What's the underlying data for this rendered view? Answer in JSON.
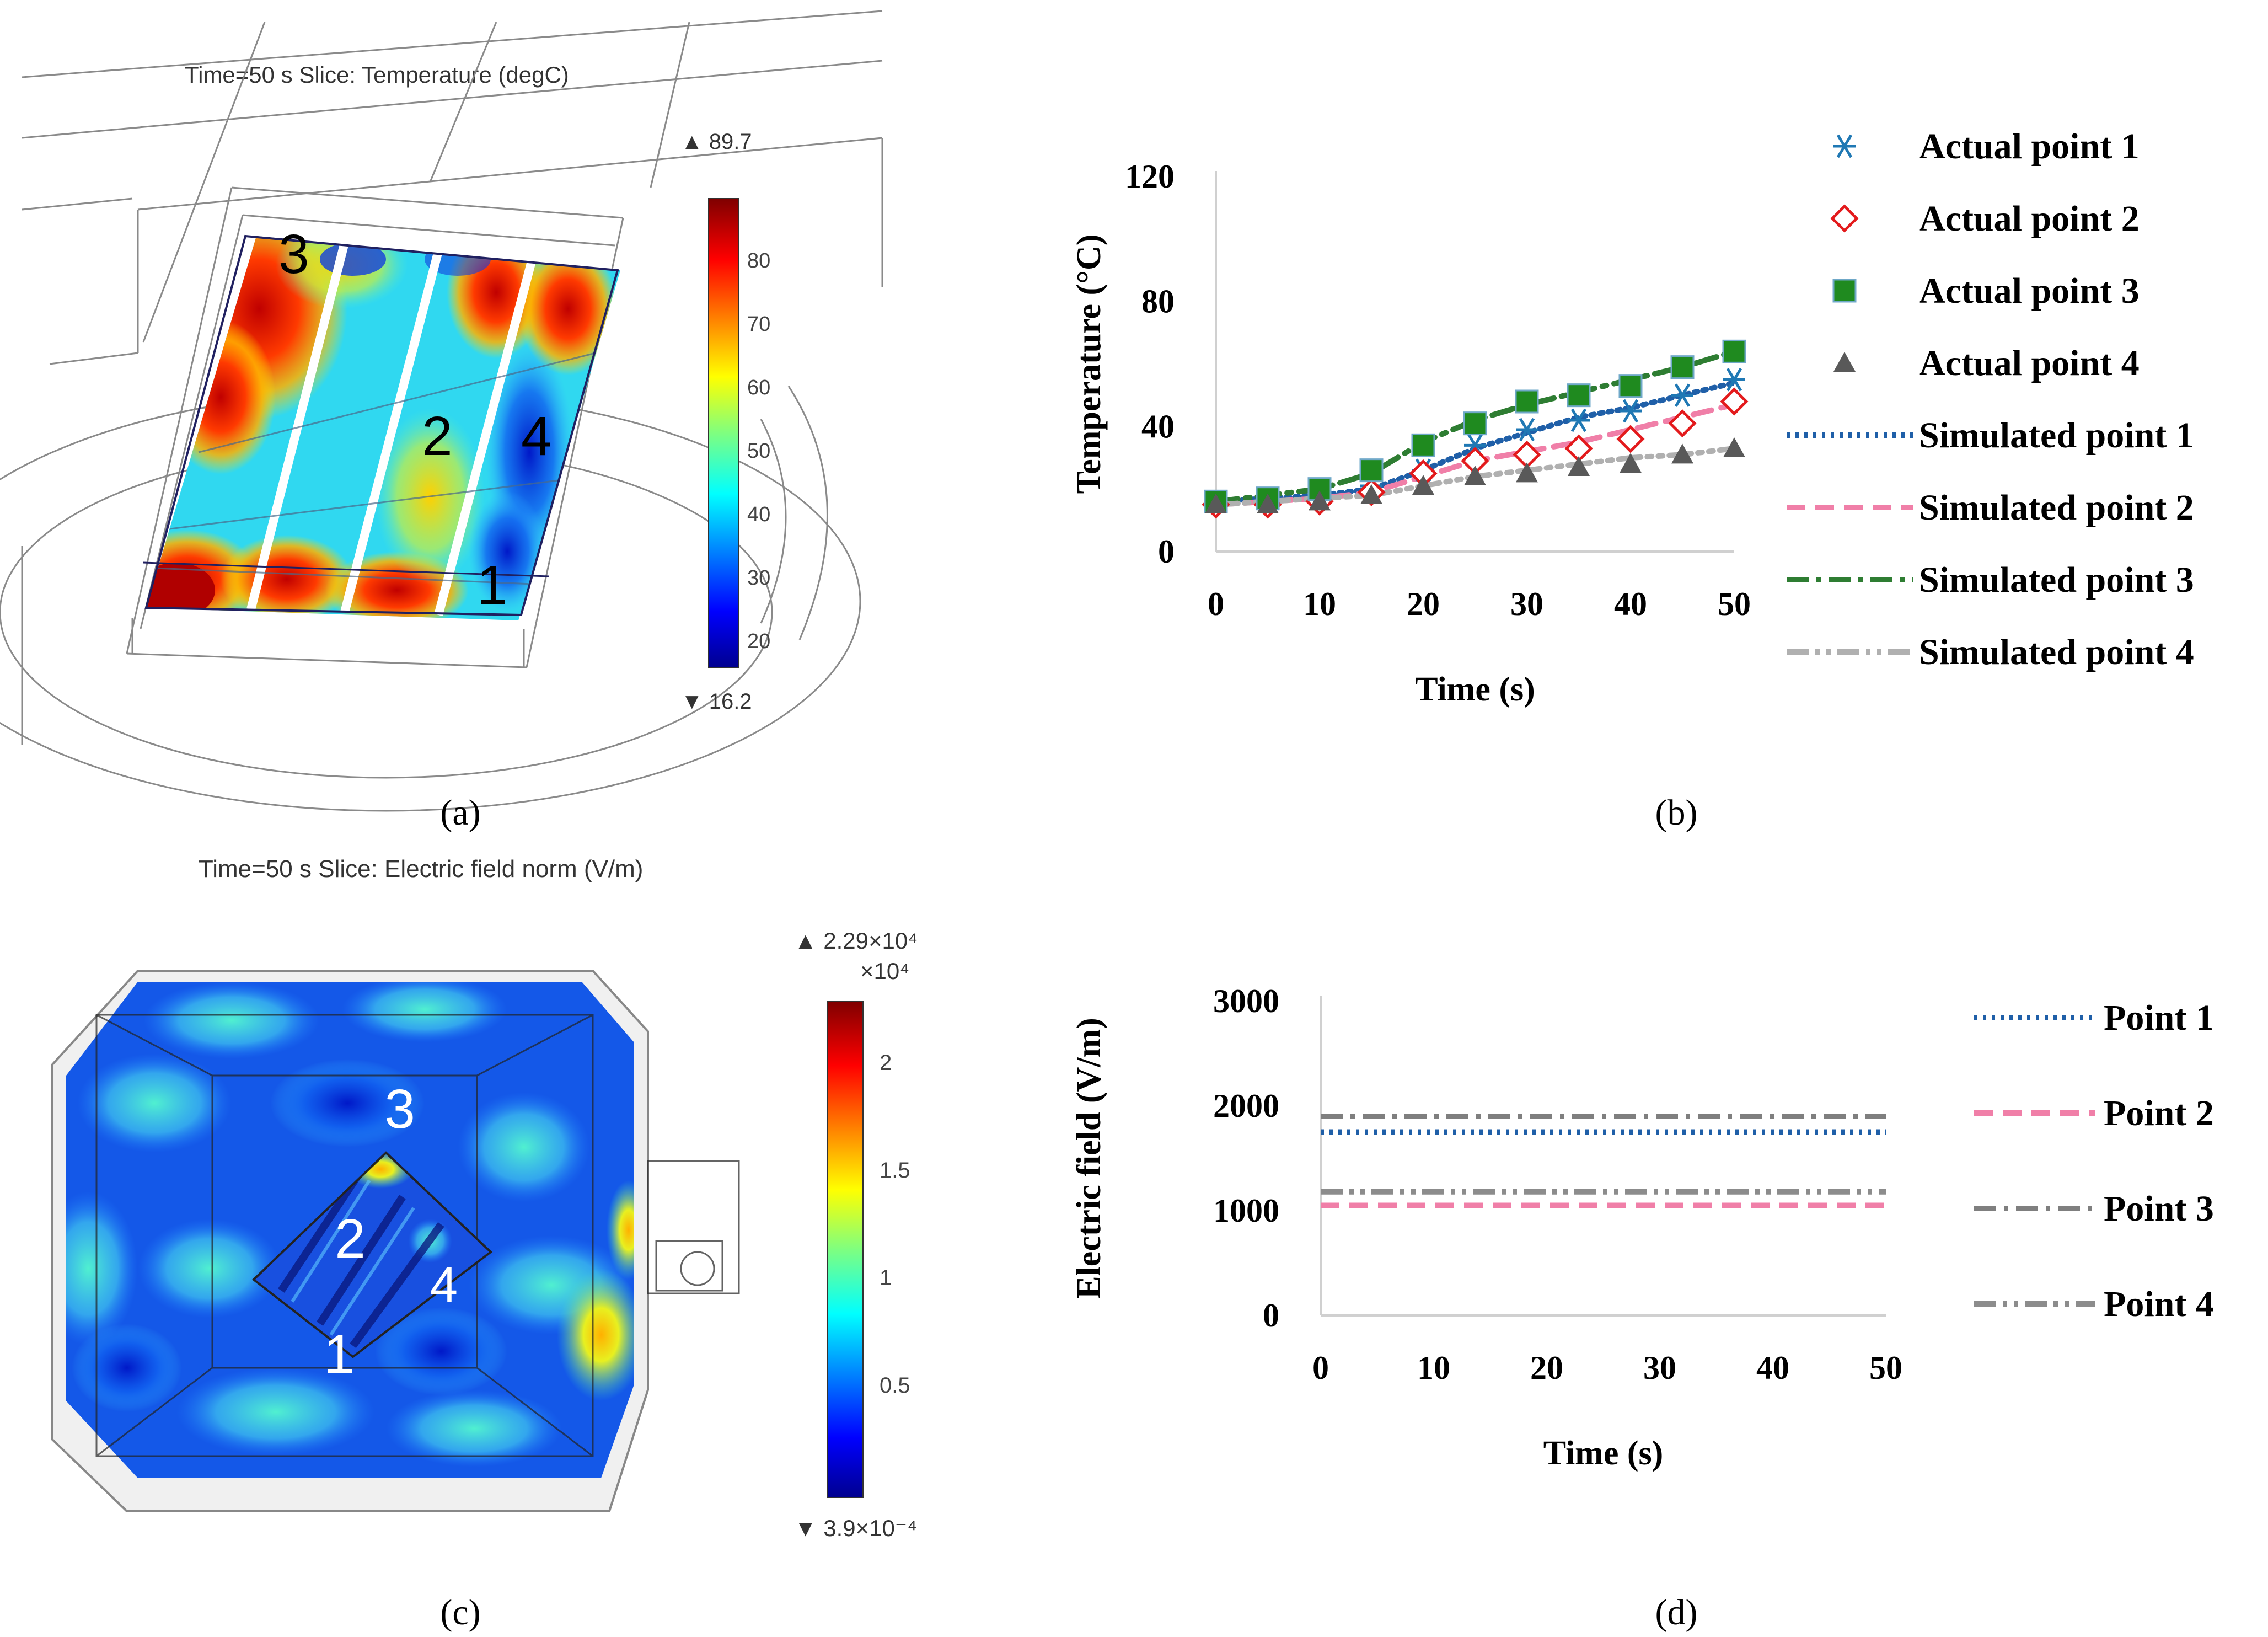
{
  "panels": {
    "a": {
      "caption": "(a)",
      "header": "Time=50 s   Slice: Temperature (degC)",
      "colorbar": {
        "max_label": "▲ 89.7",
        "min_label": "▼ 16.2",
        "ticks": [
          "80",
          "70",
          "60",
          "50",
          "40",
          "30",
          "20"
        ]
      },
      "point_labels": [
        "1",
        "2",
        "3",
        "4"
      ]
    },
    "c": {
      "caption": "(c)",
      "header": "Time=50 s   Slice: Electric field norm (V/m)",
      "colorbar": {
        "max_label": "▲ 2.29×10⁴",
        "multiplier": "×10⁴",
        "min_label": "▼ 3.9×10⁻⁴",
        "ticks": [
          "2",
          "1.5",
          "1",
          "0.5"
        ]
      },
      "point_labels": [
        "1",
        "2",
        "3",
        "4"
      ]
    },
    "b": {
      "caption": "(b)"
    },
    "d": {
      "caption": "(d)"
    }
  },
  "colors": {
    "actual1": "#1f78b4",
    "actual2": "#e31a1c",
    "actual3": "#1f8a1f",
    "actual4": "#595959",
    "sim1": "#1f5fa8",
    "sim2": "#f07fa8",
    "sim3": "#2e7d32",
    "sim4": "#b0b0b0",
    "ef1": "#1f5fa8",
    "ef2": "#f07fa8",
    "ef3": "#7f7f7f",
    "ef4": "#8c8c8c"
  },
  "chart_data": [
    {
      "id": "b",
      "type": "line",
      "xlabel": "Time (s)",
      "ylabel": "Temperature (°C)",
      "xlim": [
        0,
        50
      ],
      "ylim": [
        0,
        120
      ],
      "xticks": [
        "0",
        "10",
        "20",
        "30",
        "40",
        "50"
      ],
      "yticks": [
        "0",
        "40",
        "80",
        "120"
      ],
      "x": [
        0,
        5,
        10,
        15,
        20,
        25,
        30,
        35,
        40,
        45,
        50
      ],
      "series": [
        {
          "name": "Actual point 1",
          "kind": "marker",
          "marker": "asterisk",
          "values": [
            16,
            16,
            18,
            21,
            26,
            34,
            39,
            42,
            45,
            50,
            55
          ]
        },
        {
          "name": "Actual point 2",
          "kind": "marker",
          "marker": "diamond",
          "values": [
            15,
            15,
            16,
            19,
            25,
            29,
            31,
            33,
            36,
            41,
            48
          ]
        },
        {
          "name": "Actual point 3",
          "kind": "marker",
          "marker": "square",
          "values": [
            16,
            17,
            20,
            26,
            34,
            41,
            48,
            50,
            53,
            59,
            64
          ]
        },
        {
          "name": "Actual point 4",
          "kind": "marker",
          "marker": "triangle",
          "values": [
            15,
            15,
            16,
            18,
            21,
            24,
            25,
            27,
            28,
            31,
            33
          ]
        },
        {
          "name": "Simulated point 1",
          "kind": "line",
          "dash": "dotted",
          "values": [
            16,
            17,
            18,
            20,
            26,
            33,
            38,
            43,
            46,
            50,
            54
          ]
        },
        {
          "name": "Simulated point 2",
          "kind": "line",
          "dash": "dash",
          "values": [
            15,
            16,
            17,
            19,
            24,
            29,
            32,
            35,
            39,
            43,
            47
          ]
        },
        {
          "name": "Simulated point 3",
          "kind": "line",
          "dash": "dashdot",
          "values": [
            16,
            18,
            20,
            25,
            35,
            42,
            47,
            51,
            55,
            59,
            64
          ]
        },
        {
          "name": "Simulated point 4",
          "kind": "line",
          "dash": "dashdotdot",
          "values": [
            15,
            16,
            17,
            18,
            21,
            24,
            26,
            28,
            30,
            31,
            33
          ]
        }
      ]
    },
    {
      "id": "d",
      "type": "line",
      "xlabel": "Time (s)",
      "ylabel": "Electric field (V/m)",
      "xlim": [
        0,
        50
      ],
      "ylim": [
        0,
        3000
      ],
      "xticks": [
        "0",
        "10",
        "20",
        "30",
        "40",
        "50"
      ],
      "yticks": [
        "0",
        "1000",
        "2000",
        "3000"
      ],
      "x": [
        0,
        50
      ],
      "series": [
        {
          "name": "Point 1",
          "dash": "dotted",
          "values": [
            1750,
            1750
          ]
        },
        {
          "name": "Point 2",
          "dash": "dash",
          "values": [
            1050,
            1050
          ]
        },
        {
          "name": "Point 3",
          "dash": "dashdot",
          "values": [
            1900,
            1900
          ]
        },
        {
          "name": "Point 4",
          "dash": "dashdotdot",
          "values": [
            1180,
            1180
          ]
        }
      ]
    }
  ]
}
